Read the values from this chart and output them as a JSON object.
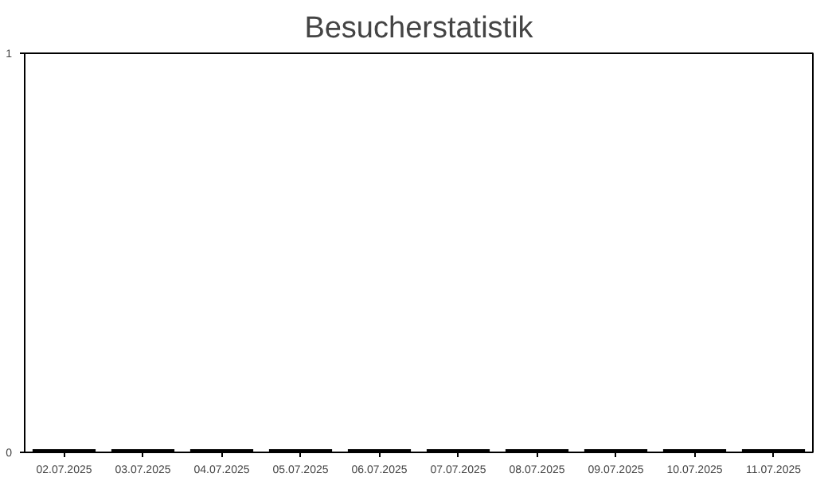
{
  "chart_data": {
    "type": "bar",
    "title": "Besucherstatistik",
    "categories": [
      "02.07.2025",
      "03.07.2025",
      "04.07.2025",
      "05.07.2025",
      "06.07.2025",
      "07.07.2025",
      "08.07.2025",
      "09.07.2025",
      "10.07.2025",
      "11.07.2025"
    ],
    "values": [
      0,
      0,
      0,
      0,
      0,
      0,
      0,
      0,
      0,
      0
    ],
    "color": "#000000",
    "ylim": [
      0,
      1
    ],
    "yticks": [
      0,
      1
    ],
    "grid": false
  }
}
